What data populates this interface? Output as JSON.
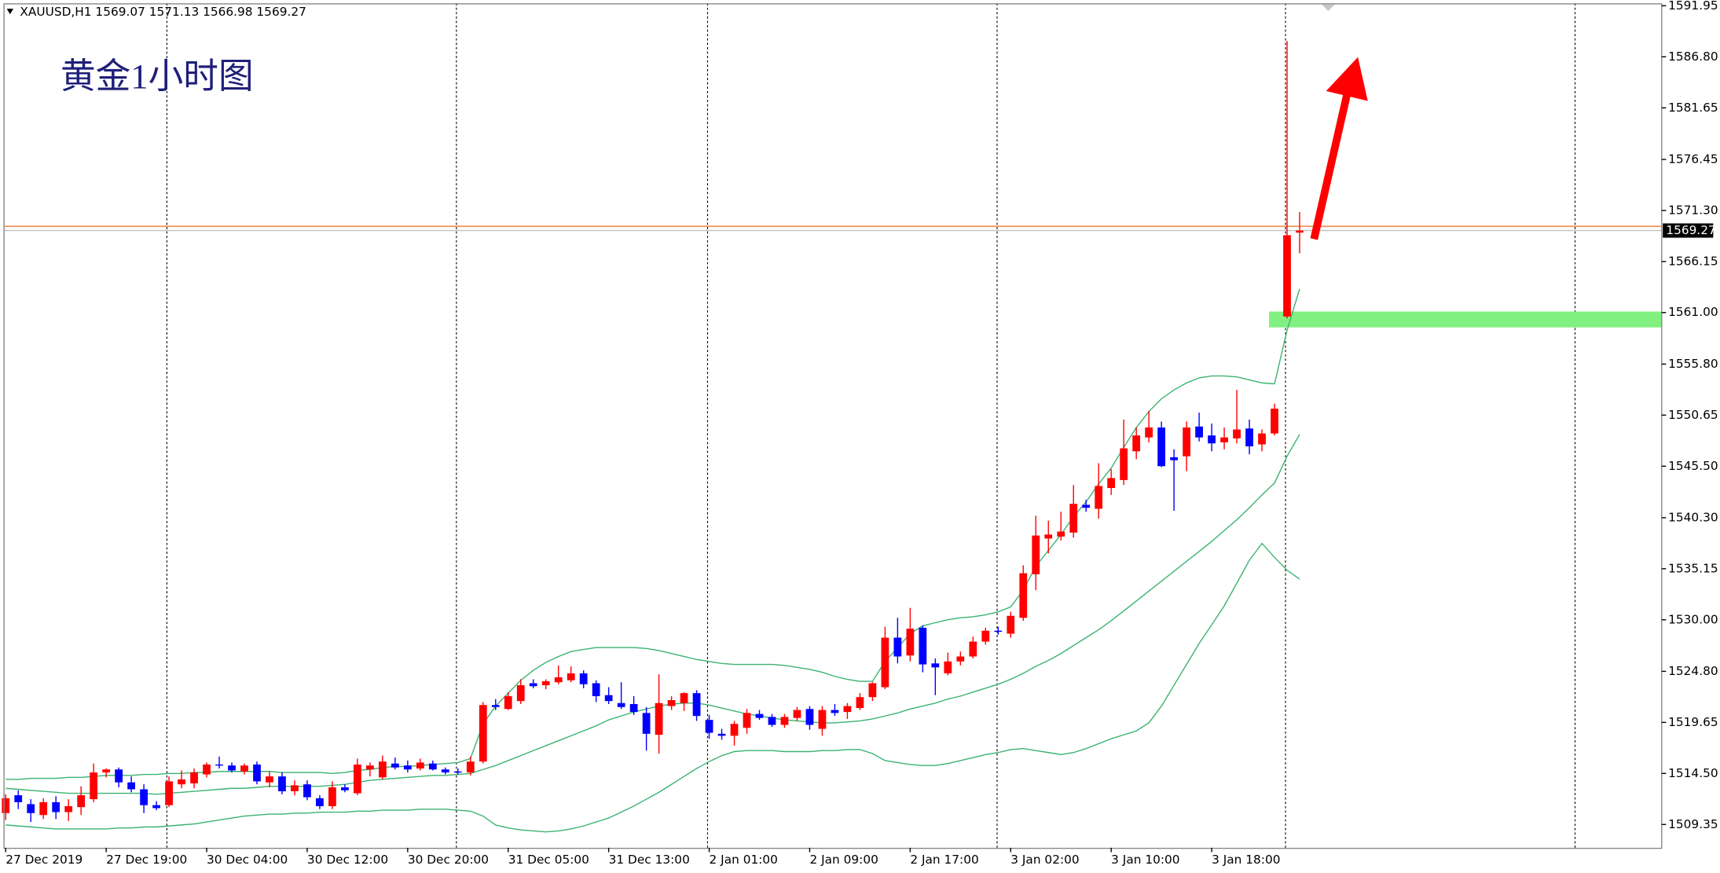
{
  "chart_data": {
    "type": "candlestick",
    "header": "XAUUSD,H1  1569.07 1571.13 1566.98 1569.27",
    "title": "黄金1小时图",
    "up_color": "#ff0000",
    "down_color": "#0000ff",
    "categories": [
      "27 Dec 2019",
      null,
      null,
      null,
      null,
      null,
      null,
      null,
      "27 Dec 19:00",
      null,
      null,
      null,
      null,
      null,
      null,
      null,
      "30 Dec 04:00",
      null,
      null,
      null,
      null,
      null,
      null,
      null,
      "30 Dec 12:00",
      null,
      null,
      null,
      null,
      null,
      null,
      null,
      "30 Dec 20:00",
      null,
      null,
      null,
      null,
      null,
      null,
      null,
      "31 Dec 05:00",
      null,
      null,
      null,
      null,
      null,
      null,
      null,
      "31 Dec 13:00",
      null,
      null,
      null,
      null,
      null,
      null,
      null,
      "2 Jan 01:00",
      null,
      null,
      null,
      null,
      null,
      null,
      null,
      "2 Jan 09:00",
      null,
      null,
      null,
      null,
      null,
      null,
      null,
      "2 Jan 17:00",
      null,
      null,
      null,
      null,
      null,
      null,
      null,
      "3 Jan 02:00",
      null,
      null,
      null,
      null,
      null,
      null,
      null,
      "3 Jan 10:00",
      null,
      null,
      null,
      null,
      null,
      null,
      null,
      "3 Jan 18:00",
      null,
      null,
      null,
      null,
      null,
      null,
      null
    ],
    "open": [
      1510.5,
      1512.3,
      1511.4,
      1510.3,
      1511.6,
      1510.6,
      1511.1,
      1511.9,
      1514.6,
      1514.9,
      1513.6,
      1512.9,
      1511.3,
      1511.3,
      1513.4,
      1513.5,
      1514.4,
      1515.4,
      1515.3,
      1514.7,
      1515.4,
      1513.6,
      1514.2,
      1512.7,
      1513.4,
      1512.0,
      1511.2,
      1513.1,
      1512.5,
      1514.9,
      1514.1,
      1515.5,
      1515.3,
      1515.0,
      1515.5,
      1514.9,
      1514.7,
      1514.6,
      1515.7,
      1521.4,
      1521.0,
      1521.8,
      1523.6,
      1523.4,
      1523.7,
      1523.9,
      1524.6,
      1523.6,
      1522.4,
      1521.6,
      1521.5,
      1520.6,
      1518.4,
      1521.3,
      1521.6,
      1522.6,
      1519.9,
      1518.5,
      1518.3,
      1519.1,
      1520.5,
      1520.2,
      1519.4,
      1520.1,
      1521.0,
      1519.0,
      1520.9,
      1520.7,
      1521.1,
      1522.2,
      1523.2,
      1528.2,
      1526.4,
      1529.2,
      1525.6,
      1524.6,
      1525.8,
      1526.3,
      1527.8,
      1528.9,
      1528.6,
      1530.2,
      1534.6,
      1538.2,
      1538.4,
      1538.8,
      1541.6,
      1541.2,
      1543.3,
      1544.1,
      1547.0,
      1548.4,
      1549.4,
      1546.4,
      1546.5,
      1549.5,
      1548.6,
      1547.9,
      1548.3,
      1549.3,
      1547.7,
      1548.8,
      1560.6,
      1569.07
    ],
    "high": [
      1512.4,
      1512.8,
      1511.9,
      1512.0,
      1512.2,
      1511.9,
      1513.2,
      1515.5,
      1515.0,
      1515.1,
      1514.2,
      1513.4,
      1511.7,
      1514.2,
      1514.8,
      1515.0,
      1515.6,
      1516.2,
      1515.6,
      1515.5,
      1515.7,
      1514.7,
      1514.6,
      1513.8,
      1513.8,
      1512.3,
      1513.7,
      1513.4,
      1516.0,
      1515.6,
      1516.3,
      1516.1,
      1515.8,
      1516.0,
      1515.8,
      1515.1,
      1515.0,
      1516.2,
      1521.7,
      1522.0,
      1522.7,
      1524.0,
      1524.0,
      1524.0,
      1525.4,
      1525.3,
      1524.9,
      1523.9,
      1523.2,
      1523.7,
      1522.3,
      1521.2,
      1524.5,
      1522.3,
      1522.7,
      1522.9,
      1520.4,
      1519.0,
      1519.8,
      1521.0,
      1520.9,
      1520.5,
      1520.5,
      1521.2,
      1521.3,
      1521.3,
      1521.5,
      1521.6,
      1522.6,
      1523.7,
      1529.3,
      1530.2,
      1531.2,
      1529.4,
      1526.1,
      1526.7,
      1526.8,
      1528.3,
      1529.2,
      1529.3,
      1530.8,
      1535.5,
      1540.5,
      1540.0,
      1540.9,
      1543.6,
      1542.1,
      1545.8,
      1545.2,
      1550.2,
      1549.4,
      1551.1,
      1550.0,
      1547.2,
      1550.0,
      1550.9,
      1549.8,
      1549.4,
      1553.2,
      1550.2,
      1549.2,
      1551.8,
      1588.4,
      1571.13
    ],
    "low": [
      1509.8,
      1510.9,
      1509.6,
      1509.9,
      1509.9,
      1509.7,
      1510.3,
      1511.6,
      1514.1,
      1513.1,
      1512.6,
      1510.5,
      1510.8,
      1511.1,
      1513.0,
      1513.0,
      1514.1,
      1515.0,
      1514.6,
      1514.4,
      1513.4,
      1513.1,
      1512.4,
      1512.3,
      1511.8,
      1510.9,
      1510.9,
      1512.6,
      1512.3,
      1514.2,
      1513.9,
      1514.9,
      1514.6,
      1514.8,
      1514.8,
      1514.4,
      1514.4,
      1514.3,
      1515.5,
      1520.9,
      1520.9,
      1521.5,
      1523.1,
      1523.0,
      1523.5,
      1523.7,
      1523.1,
      1521.7,
      1521.5,
      1521.0,
      1520.4,
      1516.8,
      1516.5,
      1520.9,
      1520.8,
      1519.8,
      1518.0,
      1517.9,
      1517.3,
      1518.5,
      1519.9,
      1519.2,
      1519.1,
      1519.8,
      1518.9,
      1518.3,
      1520.3,
      1520.0,
      1520.9,
      1521.8,
      1523.0,
      1525.6,
      1525.8,
      1524.7,
      1522.4,
      1524.4,
      1525.4,
      1526.1,
      1527.5,
      1528.5,
      1528.2,
      1529.9,
      1533.0,
      1536.7,
      1538.0,
      1538.3,
      1540.9,
      1540.2,
      1542.6,
      1543.6,
      1546.2,
      1547.9,
      1545.4,
      1541.0,
      1545.0,
      1548.0,
      1547.0,
      1547.2,
      1547.8,
      1546.7,
      1547.0,
      1548.6,
      1560.4,
      1566.98
    ],
    "close": [
      1512.0,
      1511.6,
      1510.5,
      1511.6,
      1510.6,
      1511.2,
      1512.3,
      1514.6,
      1514.9,
      1513.6,
      1512.9,
      1511.3,
      1511.0,
      1513.7,
      1513.9,
      1514.6,
      1515.4,
      1515.3,
      1514.8,
      1515.3,
      1513.7,
      1514.2,
      1512.7,
      1513.3,
      1512.1,
      1511.2,
      1513.1,
      1512.8,
      1515.4,
      1515.3,
      1515.7,
      1515.1,
      1514.9,
      1515.6,
      1514.9,
      1514.6,
      1514.6,
      1515.7,
      1521.4,
      1521.2,
      1522.3,
      1523.4,
      1523.3,
      1523.8,
      1524.2,
      1524.6,
      1523.5,
      1522.3,
      1521.8,
      1521.2,
      1520.7,
      1518.5,
      1521.6,
      1521.9,
      1522.6,
      1520.3,
      1518.6,
      1518.3,
      1519.5,
      1520.6,
      1520.1,
      1519.4,
      1520.2,
      1520.9,
      1519.4,
      1520.9,
      1520.6,
      1521.3,
      1522.2,
      1523.6,
      1528.2,
      1526.3,
      1529.1,
      1525.5,
      1525.2,
      1525.8,
      1526.3,
      1527.8,
      1528.9,
      1528.8,
      1530.4,
      1534.7,
      1538.5,
      1538.6,
      1538.9,
      1541.7,
      1541.3,
      1543.5,
      1544.3,
      1547.3,
      1548.6,
      1549.4,
      1545.5,
      1546.1,
      1549.4,
      1548.4,
      1547.8,
      1548.4,
      1549.2,
      1547.5,
      1548.8,
      1551.3,
      1568.8,
      1569.27
    ],
    "bands": {
      "color": "#3cb371",
      "upper": [
        1513.9,
        1513.9,
        1514.0,
        1514.0,
        1514.0,
        1514.1,
        1514.1,
        1514.2,
        1514.3,
        1514.3,
        1514.3,
        1514.4,
        1514.4,
        1514.5,
        1514.5,
        1514.6,
        1514.6,
        1514.7,
        1514.7,
        1514.7,
        1514.7,
        1514.7,
        1514.6,
        1514.6,
        1514.6,
        1514.6,
        1514.5,
        1514.6,
        1514.8,
        1514.9,
        1515.1,
        1515.2,
        1515.2,
        1515.3,
        1515.4,
        1515.5,
        1515.6,
        1516.0,
        1519.5,
        1521.3,
        1522.6,
        1523.9,
        1524.9,
        1525.7,
        1526.3,
        1526.8,
        1527.0,
        1527.2,
        1527.2,
        1527.2,
        1527.2,
        1527.1,
        1526.9,
        1526.6,
        1526.3,
        1526.0,
        1525.8,
        1525.6,
        1525.5,
        1525.5,
        1525.5,
        1525.5,
        1525.4,
        1525.2,
        1525.0,
        1524.7,
        1524.3,
        1524.0,
        1523.8,
        1523.8,
        1525.8,
        1527.2,
        1528.6,
        1529.4,
        1529.7,
        1530.0,
        1530.2,
        1530.3,
        1530.5,
        1530.8,
        1531.3,
        1533.0,
        1535.4,
        1537.0,
        1538.6,
        1540.4,
        1541.9,
        1543.7,
        1545.3,
        1547.4,
        1549.4,
        1551.0,
        1552.3,
        1553.2,
        1553.9,
        1554.4,
        1554.6,
        1554.6,
        1554.5,
        1554.2,
        1553.9,
        1553.8,
        1559.2,
        1563.4
      ],
      "middle": [
        1513.0,
        1512.9,
        1512.8,
        1512.7,
        1512.6,
        1512.5,
        1512.5,
        1512.5,
        1512.5,
        1512.5,
        1512.5,
        1512.5,
        1512.4,
        1512.5,
        1512.6,
        1512.7,
        1512.8,
        1512.9,
        1513.0,
        1513.0,
        1513.1,
        1513.2,
        1513.2,
        1513.2,
        1513.2,
        1513.2,
        1513.3,
        1513.4,
        1513.6,
        1513.8,
        1513.9,
        1514.0,
        1514.1,
        1514.2,
        1514.3,
        1514.3,
        1514.4,
        1514.5,
        1514.9,
        1515.3,
        1515.8,
        1516.3,
        1516.8,
        1517.3,
        1517.8,
        1518.3,
        1518.8,
        1519.3,
        1519.9,
        1520.3,
        1520.7,
        1521.0,
        1521.3,
        1521.5,
        1521.6,
        1521.6,
        1521.4,
        1521.1,
        1520.8,
        1520.5,
        1520.3,
        1520.1,
        1519.9,
        1519.8,
        1519.7,
        1519.6,
        1519.6,
        1519.7,
        1519.8,
        1520.0,
        1520.3,
        1520.6,
        1521.0,
        1521.3,
        1521.6,
        1522.0,
        1522.3,
        1522.7,
        1523.1,
        1523.5,
        1524.0,
        1524.6,
        1525.3,
        1525.9,
        1526.6,
        1527.4,
        1528.2,
        1529.0,
        1529.9,
        1530.9,
        1531.9,
        1532.9,
        1533.9,
        1534.9,
        1535.9,
        1536.9,
        1537.9,
        1539.0,
        1540.1,
        1541.3,
        1542.6,
        1543.8,
        1546.5,
        1548.7
      ],
      "lower": [
        1509.3,
        1509.2,
        1509.1,
        1509.0,
        1508.9,
        1508.9,
        1508.9,
        1508.9,
        1508.9,
        1509.0,
        1509.0,
        1509.1,
        1509.1,
        1509.2,
        1509.3,
        1509.4,
        1509.6,
        1509.8,
        1510.0,
        1510.2,
        1510.3,
        1510.4,
        1510.4,
        1510.5,
        1510.5,
        1510.6,
        1510.6,
        1510.6,
        1510.7,
        1510.7,
        1510.8,
        1510.8,
        1510.8,
        1510.9,
        1510.9,
        1510.9,
        1510.8,
        1510.7,
        1510.2,
        1509.3,
        1509.0,
        1508.8,
        1508.7,
        1508.6,
        1508.7,
        1508.9,
        1509.2,
        1509.6,
        1510.0,
        1510.6,
        1511.2,
        1511.9,
        1512.6,
        1513.4,
        1514.2,
        1515.0,
        1515.7,
        1516.3,
        1516.7,
        1516.8,
        1516.8,
        1516.8,
        1516.7,
        1516.7,
        1516.7,
        1516.8,
        1516.8,
        1516.9,
        1516.9,
        1516.5,
        1515.8,
        1515.6,
        1515.4,
        1515.3,
        1515.3,
        1515.5,
        1515.8,
        1516.1,
        1516.4,
        1516.6,
        1516.9,
        1517.0,
        1516.8,
        1516.6,
        1516.4,
        1516.6,
        1517.0,
        1517.5,
        1518.0,
        1518.4,
        1518.8,
        1519.6,
        1521.3,
        1523.4,
        1525.5,
        1527.6,
        1529.5,
        1531.4,
        1533.7,
        1536.0,
        1537.7,
        1536.3,
        1535.0,
        1534.1
      ]
    },
    "price_lines": [
      {
        "value": 1569.7,
        "color": "#f08040"
      },
      {
        "value": 1569.27,
        "color": "#c0c0c0"
      }
    ],
    "zone": {
      "range": [
        1559.5,
        1561.1
      ],
      "color": "#80f080"
    },
    "ylim": [
      1507.0,
      1592.2
    ],
    "yticks": [
      1591.95,
      {
        "value": 1586.8,
        "label": "1586.80"
      },
      1581.65,
      1576.45,
      {
        "value": 1571.3,
        "label": "1571.30"
      },
      1566.15,
      {
        "value": 1561.0,
        "label": "1561.00"
      },
      {
        "value": 1555.8,
        "label": "1555.80"
      },
      1550.65,
      {
        "value": 1545.5,
        "label": "1545.50"
      },
      {
        "value": 1540.3,
        "label": "1540.30"
      },
      1535.15,
      {
        "value": 1530.0,
        "label": "1530.00"
      },
      {
        "value": 1524.8,
        "label": "1524.80"
      },
      1519.65,
      {
        "value": 1514.5,
        "label": "1514.50"
      },
      1509.35
    ]
  }
}
